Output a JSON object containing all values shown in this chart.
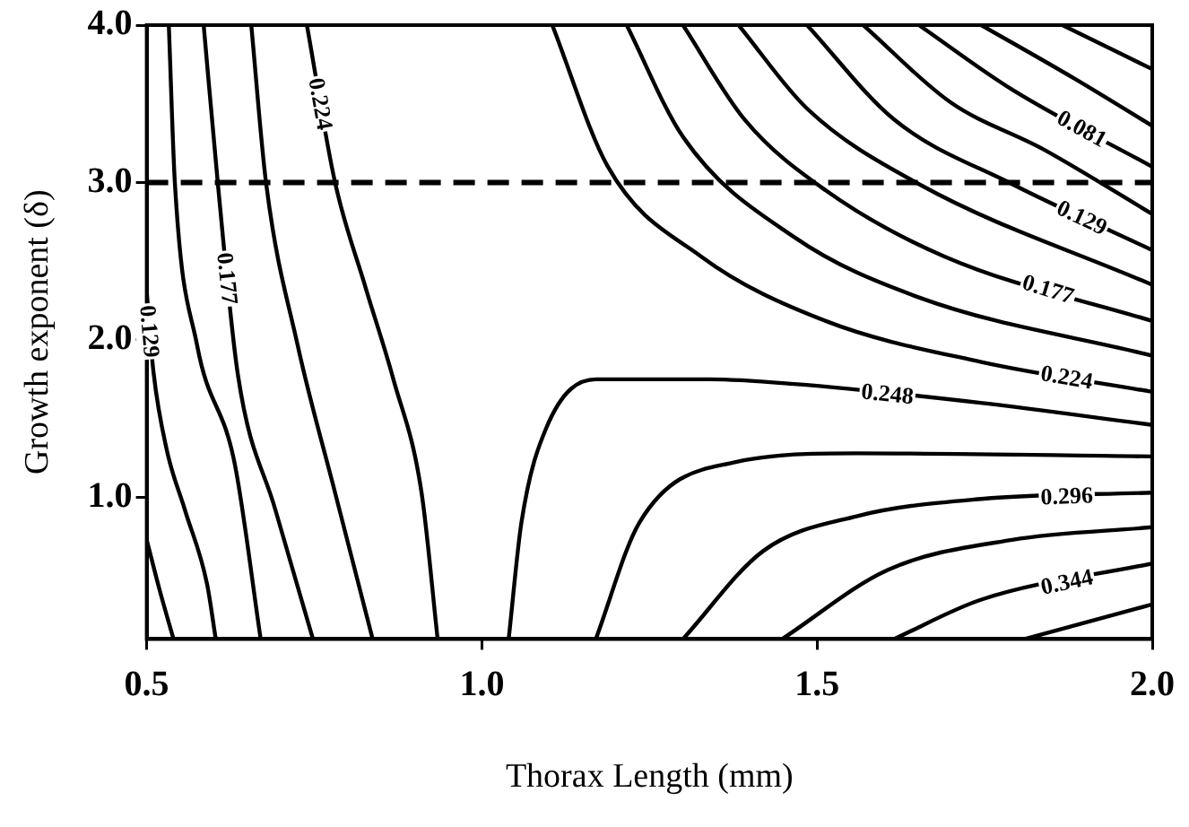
{
  "chart_data": {
    "type": "line",
    "xlabel": "Thorax Length (mm)",
    "ylabel": "Growth exponent (δ)",
    "xlim": [
      0.5,
      2.0
    ],
    "ylim": [
      0.1,
      4.0
    ],
    "xticks": [
      0.5,
      {
        "value": 1.0,
        "label": "1.0"
      },
      1.5,
      {
        "value": 2.0,
        "label": "2.0"
      }
    ],
    "yticks": [
      {
        "value": 1.0,
        "label": "1.0"
      },
      {
        "value": 2.0,
        "label": "2.0"
      },
      {
        "value": 3.0,
        "label": "3.0"
      },
      {
        "value": 4.0,
        "label": "4.0"
      }
    ],
    "grid": false,
    "legend": false,
    "marker": "none",
    "ref_lines": [
      {
        "axis": "y",
        "value": 3.0,
        "color": "#000000",
        "line_style": "dashed"
      }
    ],
    "series": [
      {
        "color": "#000000",
        "x": [
          0.5,
          0.52,
          0.54
        ],
        "values": [
          0.73,
          0.4,
          0.1
        ]
      },
      {
        "name": "0.129",
        "color": "#000000",
        "x": [
          0.5,
          0.51,
          0.53,
          0.557,
          0.59,
          0.603
        ],
        "values": [
          2.31,
          1.8,
          1.3,
          0.92,
          0.45,
          0.1
        ]
      },
      {
        "color": "#000000",
        "x": [
          0.533,
          0.542,
          0.575,
          0.631,
          0.67
        ],
        "values": [
          4.0,
          3.0,
          1.97,
          1.22,
          0.1
        ]
      },
      {
        "name": "0.177",
        "color": "#000000",
        "x": [
          0.585,
          0.606,
          0.636,
          0.692,
          0.748
        ],
        "values": [
          4.0,
          3.0,
          1.78,
          0.92,
          0.1
        ]
      },
      {
        "color": "#000000",
        "x": [
          0.656,
          0.678,
          0.725,
          0.781,
          0.837
        ],
        "values": [
          4.0,
          3.0,
          1.97,
          1.03,
          0.1
        ]
      },
      {
        "name": "0.224",
        "color": "#000000",
        "x": [
          0.739,
          0.781,
          0.826,
          0.868,
          0.91,
          0.934
        ],
        "values": [
          4.0,
          3.0,
          2.34,
          1.75,
          1.03,
          0.1
        ]
      },
      {
        "name": "0.248",
        "color": "#000000",
        "x": [
          1.04,
          1.059,
          1.096,
          1.17,
          1.34,
          1.466,
          1.744,
          2.0
        ],
        "values": [
          0.1,
          0.84,
          1.44,
          1.75,
          1.75,
          1.72,
          1.6,
          1.46
        ]
      },
      {
        "name": "0.224",
        "color": "#000000",
        "x": [
          1.105,
          1.188,
          1.327,
          1.513,
          1.745,
          2.0
        ],
        "values": [
          4.0,
          3.1,
          2.53,
          2.12,
          1.86,
          1.67
        ]
      },
      {
        "color": "#000000",
        "x": [
          1.216,
          1.3,
          1.467,
          1.652,
          2.0
        ],
        "values": [
          4.0,
          3.29,
          2.65,
          2.27,
          1.9
        ]
      },
      {
        "name": "0.177",
        "color": "#000000",
        "x": [
          1.3,
          1.392,
          1.513,
          1.69,
          2.0
        ],
        "values": [
          4.0,
          3.4,
          2.95,
          2.53,
          2.12
        ]
      },
      {
        "color": "#000000",
        "x": [
          1.383,
          1.485,
          1.652,
          2.0
        ],
        "values": [
          4.0,
          3.47,
          2.99,
          2.35
        ]
      },
      {
        "name": "0.129",
        "color": "#000000",
        "x": [
          1.485,
          1.615,
          1.791,
          2.0
        ],
        "values": [
          4.0,
          3.4,
          2.99,
          2.57
        ]
      },
      {
        "color": "#000000",
        "x": [
          1.569,
          1.699,
          1.838,
          2.0
        ],
        "values": [
          4.0,
          3.51,
          3.21,
          2.8
        ]
      },
      {
        "name": "0.081",
        "color": "#000000",
        "x": [
          1.652,
          1.791,
          2.0
        ],
        "values": [
          4.0,
          3.59,
          3.1
        ]
      },
      {
        "color": "#000000",
        "x": [
          1.745,
          1.884,
          2.0
        ],
        "values": [
          4.0,
          3.66,
          3.36
        ]
      },
      {
        "color": "#000000",
        "x": [
          1.866,
          2.0
        ],
        "values": [
          4.0,
          3.72
        ]
      },
      {
        "color": "#000000",
        "x": [
          1.17,
          1.235,
          1.374,
          1.559,
          2.0
        ],
        "values": [
          0.1,
          0.84,
          1.22,
          1.28,
          1.26
        ]
      },
      {
        "name": "0.296",
        "color": "#000000",
        "x": [
          1.3,
          1.42,
          1.559,
          1.745,
          2.0
        ],
        "values": [
          0.1,
          0.66,
          0.88,
          0.99,
          1.03
        ]
      },
      {
        "color": "#000000",
        "x": [
          1.448,
          1.606,
          1.791,
          2.0
        ],
        "values": [
          0.1,
          0.54,
          0.73,
          0.81
        ]
      },
      {
        "name": "0.344",
        "color": "#000000",
        "x": [
          1.615,
          1.745,
          2.0
        ],
        "values": [
          0.1,
          0.35,
          0.58
        ]
      },
      {
        "color": "#000000",
        "x": [
          1.81,
          2.0
        ],
        "values": [
          0.1,
          0.32
        ]
      }
    ]
  }
}
